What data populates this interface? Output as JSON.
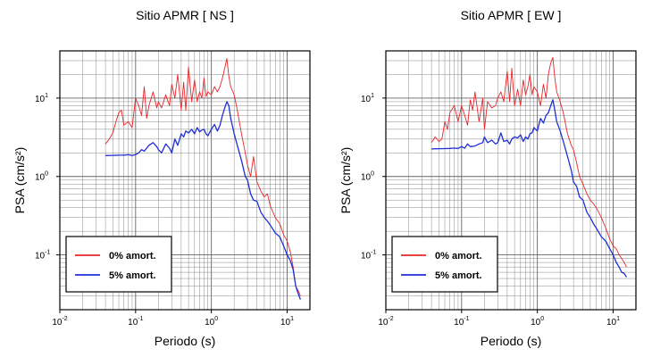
{
  "chart_data": [
    {
      "type": "line",
      "title": "Sitio APMR [ NS ]",
      "xlabel": "Periodo (s)",
      "ylabel": "PSA (cm/s²)",
      "xscale": "log",
      "yscale": "log",
      "xlim": [
        0.01,
        20
      ],
      "ylim": [
        0.02,
        40
      ],
      "grid": true,
      "legend_position": "bottom-left",
      "x_ticks": [
        {
          "base": "10",
          "exp": "-2",
          "value": 0.01
        },
        {
          "base": "10",
          "exp": "-1",
          "value": 0.1
        },
        {
          "base": "10",
          "exp": "0",
          "value": 1
        },
        {
          "base": "10",
          "exp": "1",
          "value": 10
        }
      ],
      "y_ticks": [
        {
          "base": "10",
          "exp": "-1",
          "value": 0.1
        },
        {
          "base": "10",
          "exp": "0",
          "value": 1
        },
        {
          "base": "10",
          "exp": "1",
          "value": 10
        }
      ],
      "series": [
        {
          "name": "0% amort.",
          "color": "#e8262a",
          "x": [
            0.04,
            0.045,
            0.05,
            0.055,
            0.06,
            0.065,
            0.07,
            0.08,
            0.09,
            0.1,
            0.11,
            0.12,
            0.13,
            0.14,
            0.15,
            0.17,
            0.19,
            0.2,
            0.22,
            0.25,
            0.28,
            0.3,
            0.33,
            0.36,
            0.4,
            0.43,
            0.46,
            0.5,
            0.55,
            0.6,
            0.65,
            0.7,
            0.75,
            0.8,
            0.85,
            0.9,
            1.0,
            1.1,
            1.2,
            1.3,
            1.4,
            1.5,
            1.6,
            1.7,
            1.8,
            2.0,
            2.2,
            2.5,
            2.8,
            3.0,
            3.3,
            3.6,
            4.0,
            4.5,
            5.0,
            5.5,
            6.0,
            7.0,
            8.0,
            9.0,
            10.0,
            11.0,
            12.0,
            13.0,
            14.0,
            15.0
          ],
          "y": [
            2.6,
            3.0,
            3.6,
            5.0,
            6.5,
            7.0,
            4.5,
            5.0,
            4.2,
            10.0,
            8.0,
            6.0,
            14.0,
            5.5,
            8.0,
            12.0,
            7.5,
            9.0,
            7.5,
            11.0,
            8.0,
            15.0,
            10.0,
            20.0,
            7.0,
            16.0,
            7.0,
            25.0,
            9.0,
            17.0,
            9.0,
            12.0,
            10.0,
            18.0,
            10.5,
            12.0,
            11.0,
            14.0,
            12.0,
            14.0,
            18.0,
            24.0,
            32.0,
            19.0,
            14.0,
            11.0,
            7.0,
            3.5,
            2.0,
            1.4,
            1.0,
            1.8,
            0.85,
            0.65,
            0.55,
            0.6,
            0.42,
            0.3,
            0.25,
            0.18,
            0.15,
            0.11,
            0.07,
            0.04,
            0.035,
            0.03
          ]
        },
        {
          "name": "5% amort.",
          "color": "#1f2fd8",
          "x": [
            0.04,
            0.05,
            0.06,
            0.07,
            0.08,
            0.09,
            0.1,
            0.11,
            0.12,
            0.13,
            0.15,
            0.17,
            0.19,
            0.2,
            0.22,
            0.25,
            0.28,
            0.3,
            0.33,
            0.36,
            0.4,
            0.43,
            0.46,
            0.5,
            0.55,
            0.6,
            0.65,
            0.7,
            0.75,
            0.8,
            0.85,
            0.9,
            1.0,
            1.1,
            1.2,
            1.3,
            1.4,
            1.5,
            1.6,
            1.7,
            1.8,
            2.0,
            2.2,
            2.5,
            2.8,
            3.0,
            3.3,
            3.6,
            4.0,
            4.5,
            5.0,
            5.5,
            6.0,
            7.0,
            8.0,
            9.0,
            10.0,
            11.0,
            12.0,
            13.0,
            14.0,
            15.0
          ],
          "y": [
            1.85,
            1.86,
            1.87,
            1.87,
            1.9,
            1.85,
            1.9,
            2.0,
            2.2,
            2.1,
            2.5,
            2.7,
            2.4,
            2.2,
            2.0,
            2.6,
            2.3,
            2.0,
            3.0,
            2.5,
            3.5,
            3.2,
            3.8,
            3.6,
            4.0,
            3.5,
            4.2,
            3.7,
            3.9,
            4.0,
            3.5,
            3.3,
            4.0,
            4.6,
            3.8,
            4.5,
            6.0,
            7.5,
            9.0,
            8.0,
            5.5,
            3.5,
            2.5,
            1.6,
            1.0,
            0.9,
            0.6,
            0.5,
            0.48,
            0.35,
            0.3,
            0.27,
            0.24,
            0.19,
            0.17,
            0.13,
            0.1,
            0.085,
            0.065,
            0.04,
            0.032,
            0.027
          ]
        }
      ]
    },
    {
      "type": "line",
      "title": "Sitio APMR [ EW ]",
      "xlabel": "Periodo (s)",
      "ylabel": "PSA (cm/s²)",
      "xscale": "log",
      "yscale": "log",
      "xlim": [
        0.01,
        20
      ],
      "ylim": [
        0.02,
        40
      ],
      "grid": true,
      "legend_position": "bottom-left",
      "x_ticks": [
        {
          "base": "10",
          "exp": "-2",
          "value": 0.01
        },
        {
          "base": "10",
          "exp": "-1",
          "value": 0.1
        },
        {
          "base": "10",
          "exp": "0",
          "value": 1
        },
        {
          "base": "10",
          "exp": "1",
          "value": 10
        }
      ],
      "y_ticks": [
        {
          "base": "10",
          "exp": "-1",
          "value": 0.1
        },
        {
          "base": "10",
          "exp": "0",
          "value": 1
        },
        {
          "base": "10",
          "exp": "1",
          "value": 10
        }
      ],
      "series": [
        {
          "name": "0% amort.",
          "color": "#e8262a",
          "x": [
            0.04,
            0.045,
            0.05,
            0.055,
            0.06,
            0.065,
            0.07,
            0.08,
            0.09,
            0.1,
            0.11,
            0.12,
            0.13,
            0.14,
            0.15,
            0.17,
            0.19,
            0.2,
            0.22,
            0.25,
            0.28,
            0.3,
            0.33,
            0.36,
            0.4,
            0.43,
            0.46,
            0.5,
            0.55,
            0.6,
            0.65,
            0.7,
            0.75,
            0.8,
            0.85,
            0.9,
            1.0,
            1.1,
            1.2,
            1.3,
            1.4,
            1.5,
            1.6,
            1.7,
            1.8,
            2.0,
            2.2,
            2.5,
            2.8,
            3.0,
            3.3,
            3.6,
            4.0,
            4.5,
            5.0,
            5.5,
            6.0,
            7.0,
            8.0,
            9.0,
            10.0,
            11.0,
            12.0,
            13.0,
            14.0,
            15.0
          ],
          "y": [
            2.7,
            3.2,
            2.8,
            3.0,
            5.0,
            4.0,
            6.5,
            8.0,
            5.0,
            8.0,
            6.0,
            4.5,
            9.5,
            7.0,
            12.0,
            5.0,
            10.0,
            4.0,
            9.0,
            7.5,
            8.0,
            10.0,
            12.0,
            9.0,
            22.0,
            9.0,
            24.0,
            8.0,
            13.0,
            8.0,
            17.0,
            11.0,
            14.0,
            20.0,
            11.0,
            14.0,
            12.0,
            8.0,
            15.0,
            10.0,
            20.0,
            28.0,
            33.0,
            18.0,
            12.0,
            9.0,
            6.5,
            3.5,
            2.5,
            2.2,
            1.5,
            1.0,
            0.8,
            0.6,
            0.5,
            0.45,
            0.4,
            0.3,
            0.22,
            0.16,
            0.13,
            0.12,
            0.1,
            0.09,
            0.08,
            0.07
          ]
        },
        {
          "name": "5% amort.",
          "color": "#1f2fd8",
          "x": [
            0.04,
            0.05,
            0.06,
            0.07,
            0.08,
            0.09,
            0.1,
            0.11,
            0.12,
            0.13,
            0.15,
            0.17,
            0.19,
            0.2,
            0.22,
            0.25,
            0.28,
            0.3,
            0.33,
            0.36,
            0.4,
            0.43,
            0.46,
            0.5,
            0.55,
            0.6,
            0.65,
            0.7,
            0.75,
            0.8,
            0.85,
            0.9,
            1.0,
            1.1,
            1.2,
            1.3,
            1.4,
            1.5,
            1.6,
            1.7,
            1.8,
            2.0,
            2.2,
            2.5,
            2.8,
            3.0,
            3.3,
            3.6,
            4.0,
            4.5,
            5.0,
            5.5,
            6.0,
            7.0,
            8.0,
            9.0,
            10.0,
            11.0,
            12.0,
            13.0,
            14.0,
            15.0
          ],
          "y": [
            2.25,
            2.26,
            2.27,
            2.28,
            2.3,
            2.28,
            2.4,
            2.3,
            2.6,
            2.4,
            2.45,
            2.6,
            2.7,
            3.2,
            2.7,
            2.9,
            2.6,
            2.7,
            3.6,
            2.8,
            2.9,
            2.6,
            3.0,
            3.2,
            3.1,
            3.4,
            2.8,
            3.2,
            3.0,
            3.5,
            3.6,
            4.2,
            3.8,
            5.5,
            4.8,
            6.0,
            6.5,
            8.0,
            9.5,
            7.0,
            5.0,
            3.8,
            2.8,
            1.8,
            1.2,
            0.85,
            0.75,
            0.55,
            0.5,
            0.35,
            0.3,
            0.25,
            0.22,
            0.17,
            0.15,
            0.12,
            0.1,
            0.08,
            0.07,
            0.06,
            0.058,
            0.052
          ]
        }
      ]
    }
  ]
}
